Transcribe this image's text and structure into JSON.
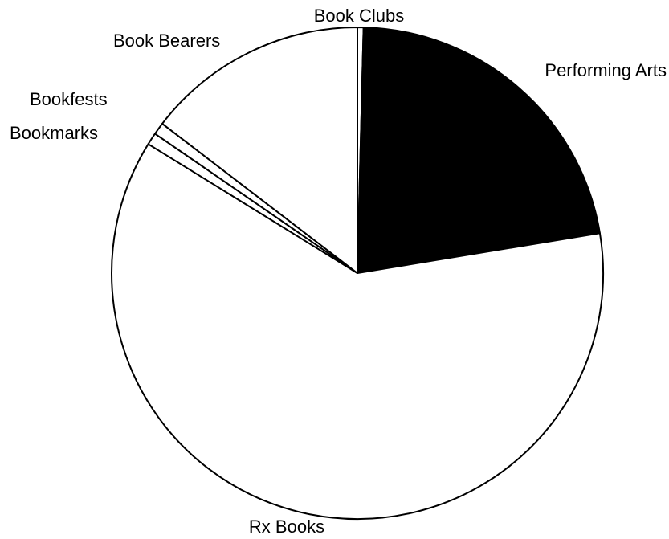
{
  "chart_data": {
    "type": "pie",
    "title": "",
    "slices": [
      {
        "label": "Book Clubs",
        "value": 0.4,
        "color": "#ffffff"
      },
      {
        "label": "Performing Arts",
        "value": 22.0,
        "color": "#000000"
      },
      {
        "label": "Rx Books",
        "value": 61.4,
        "color": "#ffffff"
      },
      {
        "label": "Bookmarks",
        "value": 0.8,
        "color": "#ffffff"
      },
      {
        "label": "Bookfests",
        "value": 0.8,
        "color": "#ffffff"
      },
      {
        "label": "Book Bearers",
        "value": 14.6,
        "color": "#ffffff"
      }
    ]
  }
}
